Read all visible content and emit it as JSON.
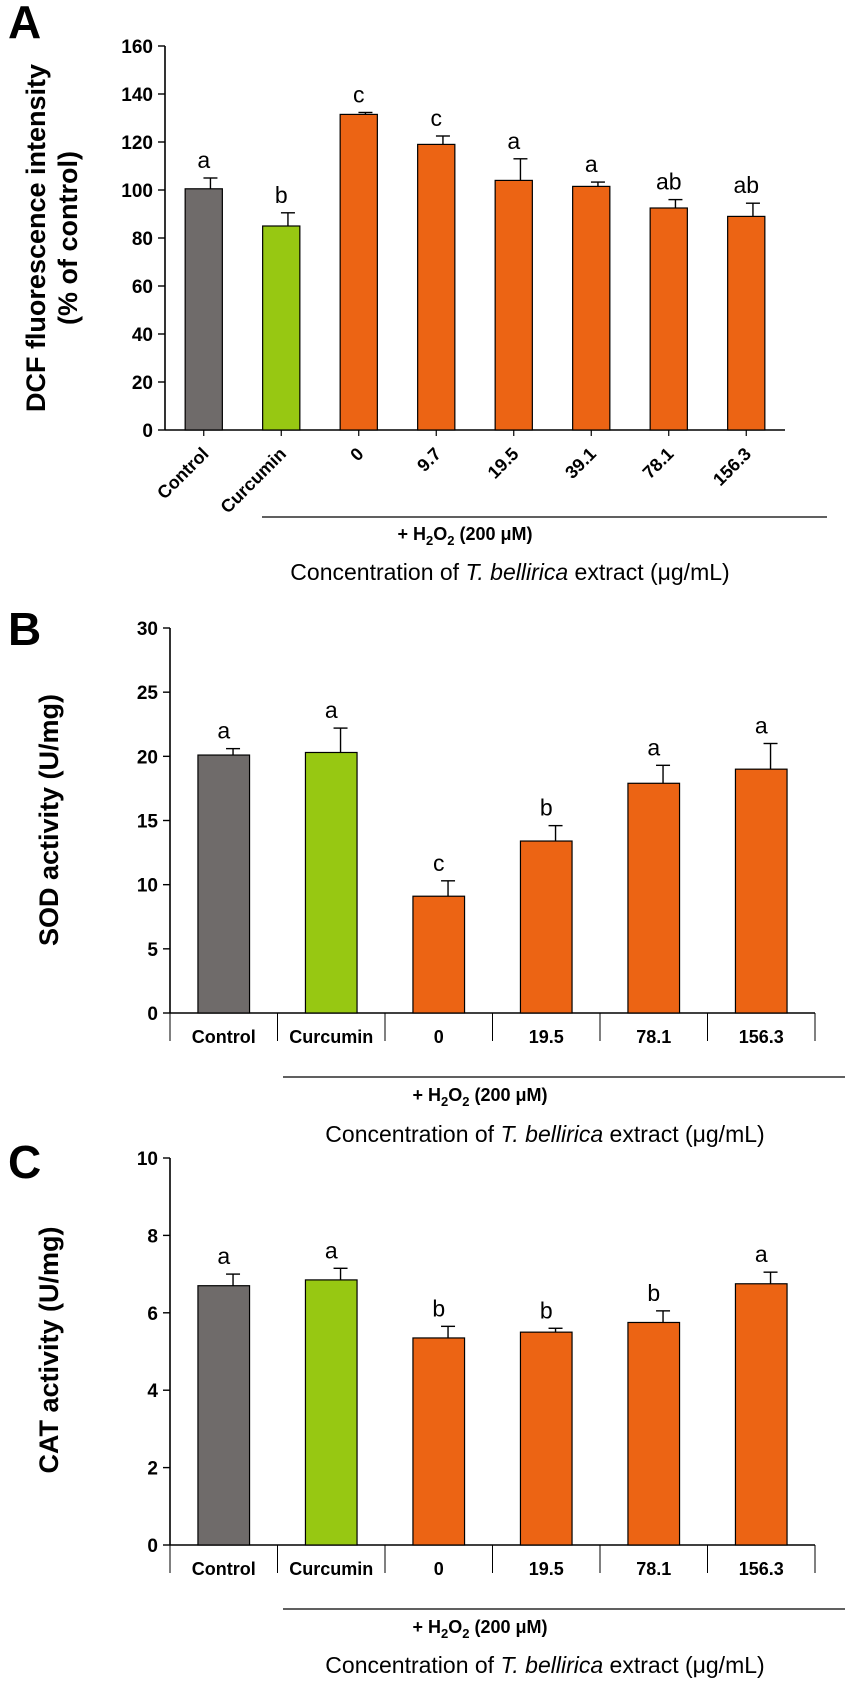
{
  "colors": {
    "control": "#6f6b6a",
    "curcumin": "#97c812",
    "h2o2": "#ec6414",
    "axis": "#000000"
  },
  "chart_data": [
    {
      "panel": "A",
      "type": "bar",
      "ylabel": [
        "DCF fluorescence intensity",
        "(% of control)"
      ],
      "ylim": [
        0,
        160
      ],
      "yticks": [
        0,
        20,
        40,
        60,
        80,
        100,
        120,
        140,
        160
      ],
      "categories": [
        "Control",
        "Curcumin",
        "0",
        "9.7",
        "19.5",
        "39.1",
        "78.1",
        "156.3"
      ],
      "values": [
        100.5,
        85,
        131.5,
        119,
        104,
        101.5,
        92.5,
        89
      ],
      "errors": [
        4.5,
        5.5,
        0.8,
        3.5,
        9,
        1.8,
        3.5,
        5.5
      ],
      "letters": [
        "a",
        "b",
        "c",
        "c",
        "a",
        "a",
        "ab",
        "ab"
      ],
      "groups": [
        "control",
        "curcumin",
        "h2o2",
        "h2o2",
        "h2o2",
        "h2o2",
        "h2o2",
        "h2o2"
      ],
      "tick_labels_rotated": true,
      "treatment_prefix": "+ H",
      "treatment_sub1": "2",
      "treatment_mid": "O",
      "treatment_sub2": "2",
      "treatment_suffix": " (200 μM)",
      "conc_prefix": "Concentration of ",
      "conc_italic": "T. bellirica",
      "conc_suffix": " extract (μg/mL)"
    },
    {
      "panel": "B",
      "type": "bar",
      "ylabel": [
        "SOD activity (U/mg)"
      ],
      "ylim": [
        0,
        30
      ],
      "yticks": [
        0,
        5,
        10,
        15,
        20,
        25,
        30
      ],
      "categories": [
        "Control",
        "Curcumin",
        "0",
        "19.5",
        "78.1",
        "156.3"
      ],
      "values": [
        20.1,
        20.3,
        9.1,
        13.4,
        17.9,
        19.0
      ],
      "errors": [
        0.5,
        1.9,
        1.2,
        1.2,
        1.4,
        2.0
      ],
      "letters": [
        "a",
        "a",
        "c",
        "b",
        "a",
        "a"
      ],
      "groups": [
        "control",
        "curcumin",
        "h2o2",
        "h2o2",
        "h2o2",
        "h2o2"
      ],
      "tick_labels_rotated": false,
      "treatment_prefix": "+ H",
      "treatment_sub1": "2",
      "treatment_mid": "O",
      "treatment_sub2": "2",
      "treatment_suffix": " (200 μM)",
      "conc_prefix": "Concentration of ",
      "conc_italic": "T. bellirica",
      "conc_suffix": " extract (μg/mL)"
    },
    {
      "panel": "C",
      "type": "bar",
      "ylabel": [
        "CAT activity (U/mg)"
      ],
      "ylim": [
        0,
        10
      ],
      "yticks": [
        0,
        2,
        4,
        6,
        8,
        10
      ],
      "categories": [
        "Control",
        "Curcumin",
        "0",
        "19.5",
        "78.1",
        "156.3"
      ],
      "values": [
        6.7,
        6.85,
        5.35,
        5.5,
        5.75,
        6.75
      ],
      "errors": [
        0.3,
        0.3,
        0.3,
        0.1,
        0.3,
        0.3
      ],
      "letters": [
        "a",
        "a",
        "b",
        "b",
        "b",
        "a"
      ],
      "groups": [
        "control",
        "curcumin",
        "h2o2",
        "h2o2",
        "h2o2",
        "h2o2"
      ],
      "tick_labels_rotated": false,
      "treatment_prefix": "+ H",
      "treatment_sub1": "2",
      "treatment_mid": "O",
      "treatment_sub2": "2",
      "treatment_suffix": " (200 μM)",
      "conc_prefix": "Concentration of ",
      "conc_italic": "T. bellirica",
      "conc_suffix": " extract (μg/mL)"
    }
  ]
}
